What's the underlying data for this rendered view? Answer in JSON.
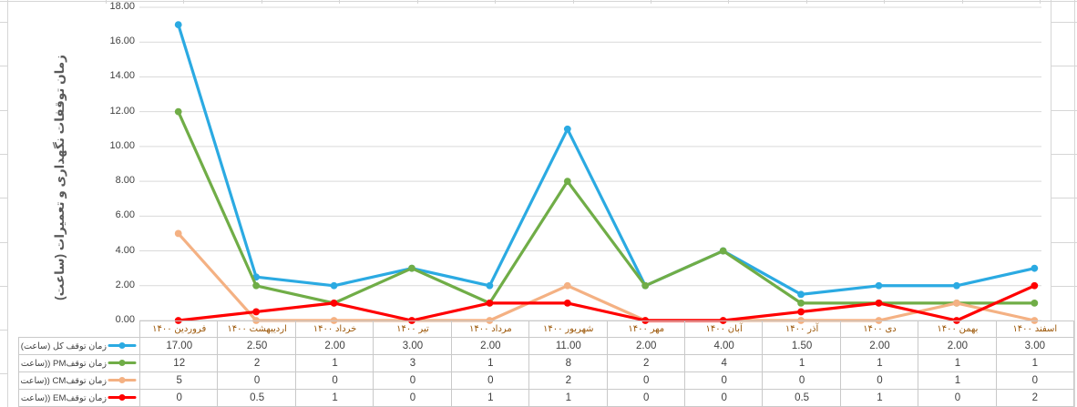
{
  "chart_data": {
    "type": "line",
    "title": "",
    "ylabel": "زمان توقفات نگهداری و تعمیرات (ساعت)",
    "xlabel": "",
    "ylim": [
      0,
      18
    ],
    "ytick_step": 2,
    "ytick_labels": [
      "0.00",
      "2.00",
      "4.00",
      "6.00",
      "8.00",
      "10.00",
      "12.00",
      "14.00",
      "16.00",
      "18.00"
    ],
    "grid": true,
    "legend_position": "data-table-left",
    "categories": [
      "۱۴۰۰ فروردین",
      "۱۴۰۰ اردیبهشت",
      "۱۴۰۰ خرداد",
      "۱۴۰۰ تیر",
      "۱۴۰۰ مرداد",
      "۱۴۰۰ شهریور",
      "۱۴۰۰ مهر",
      "۱۴۰۰ آبان",
      "۱۴۰۰ آذر",
      "۱۴۰۰ دی",
      "۱۴۰۰ بهمن",
      "۱۴۰۰ اسفند"
    ],
    "series": [
      {
        "name": "زمان توقف کل (ساعت)",
        "color": "#2baae2",
        "values": [
          17,
          2.5,
          2,
          3,
          2,
          11,
          2,
          4,
          1.5,
          2,
          2,
          3
        ],
        "display": [
          "17.00",
          "2.50",
          "2.00",
          "3.00",
          "2.00",
          "11.00",
          "2.00",
          "4.00",
          "1.50",
          "2.00",
          "2.00",
          "3.00"
        ]
      },
      {
        "name": "ساعت)) PMزمان توقف",
        "color": "#70ad47",
        "values": [
          12,
          2,
          1,
          3,
          1,
          8,
          2,
          4,
          1,
          1,
          1,
          1
        ],
        "display": [
          "12",
          "2",
          "1",
          "3",
          "1",
          "8",
          "2",
          "4",
          "1",
          "1",
          "1",
          "1"
        ]
      },
      {
        "name": "ساعت)) CMزمان توقف",
        "color": "#f4b183",
        "values": [
          5,
          0,
          0,
          0,
          0,
          2,
          0,
          0,
          0,
          0,
          1,
          0
        ],
        "display": [
          "5",
          "0",
          "0",
          "0",
          "0",
          "2",
          "0",
          "0",
          "0",
          "0",
          "1",
          "0"
        ]
      },
      {
        "name": "ساعت)) EMزمان توقف",
        "color": "#ff0000",
        "values": [
          0,
          0.5,
          1,
          0,
          1,
          1,
          0,
          0,
          0.5,
          1,
          0,
          2
        ],
        "display": [
          "0",
          "0.5",
          "1",
          "0",
          "1",
          "1",
          "0",
          "0",
          "0.5",
          "1",
          "0",
          "2"
        ]
      }
    ]
  }
}
